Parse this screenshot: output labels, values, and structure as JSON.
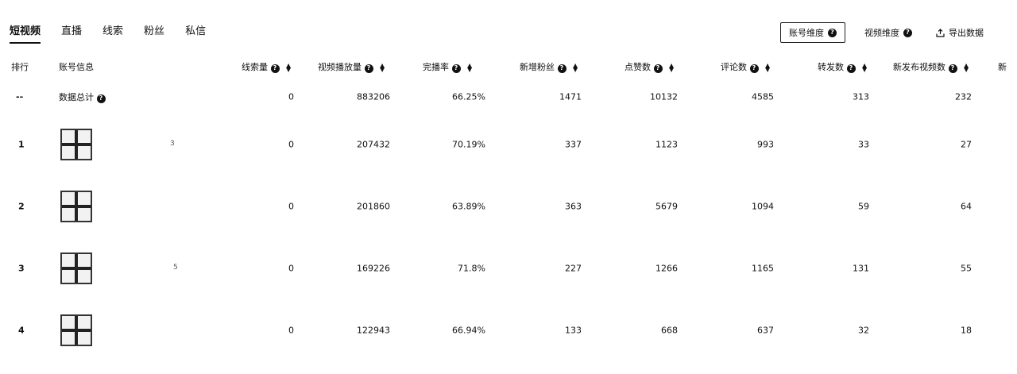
{
  "tabs": [
    {
      "label": "短视频",
      "active": true
    },
    {
      "label": "直播",
      "active": false
    },
    {
      "label": "线索",
      "active": false
    },
    {
      "label": "粉丝",
      "active": false
    },
    {
      "label": "私信",
      "active": false
    }
  ],
  "controls": {
    "account_dim": "账号维度",
    "video_dim": "视频维度",
    "export": "导出数据"
  },
  "table": {
    "headers": {
      "rank": "排行",
      "account": "账号信息",
      "leads": "线索量",
      "plays": "视频播放量",
      "completion": "完播率",
      "new_fans": "新增粉丝",
      "likes": "点赞数",
      "comments": "评论数",
      "shares": "转发数",
      "new_videos": "新发布视频数",
      "more": "新"
    },
    "total": {
      "rank": "--",
      "account": "数据总计",
      "leads": "0",
      "plays": "883206",
      "completion": "66.25%",
      "new_fans": "1471",
      "likes": "10132",
      "comments": "4585",
      "shares": "313",
      "new_videos": "232"
    },
    "rows": [
      {
        "rank": "1",
        "name_tail": "3",
        "leads": "0",
        "plays": "207432",
        "completion": "70.19%",
        "new_fans": "337",
        "likes": "1123",
        "comments": "993",
        "shares": "33",
        "new_videos": "27"
      },
      {
        "rank": "2",
        "name_tail": "",
        "leads": "0",
        "plays": "201860",
        "completion": "63.89%",
        "new_fans": "363",
        "likes": "5679",
        "comments": "1094",
        "shares": "59",
        "new_videos": "64"
      },
      {
        "rank": "3",
        "name_tail": "5",
        "leads": "0",
        "plays": "169226",
        "completion": "71.8%",
        "new_fans": "227",
        "likes": "1266",
        "comments": "1165",
        "shares": "131",
        "new_videos": "55"
      },
      {
        "rank": "4",
        "name_tail": "",
        "leads": "0",
        "plays": "122943",
        "completion": "66.94%",
        "new_fans": "133",
        "likes": "668",
        "comments": "637",
        "shares": "32",
        "new_videos": "18"
      }
    ]
  }
}
